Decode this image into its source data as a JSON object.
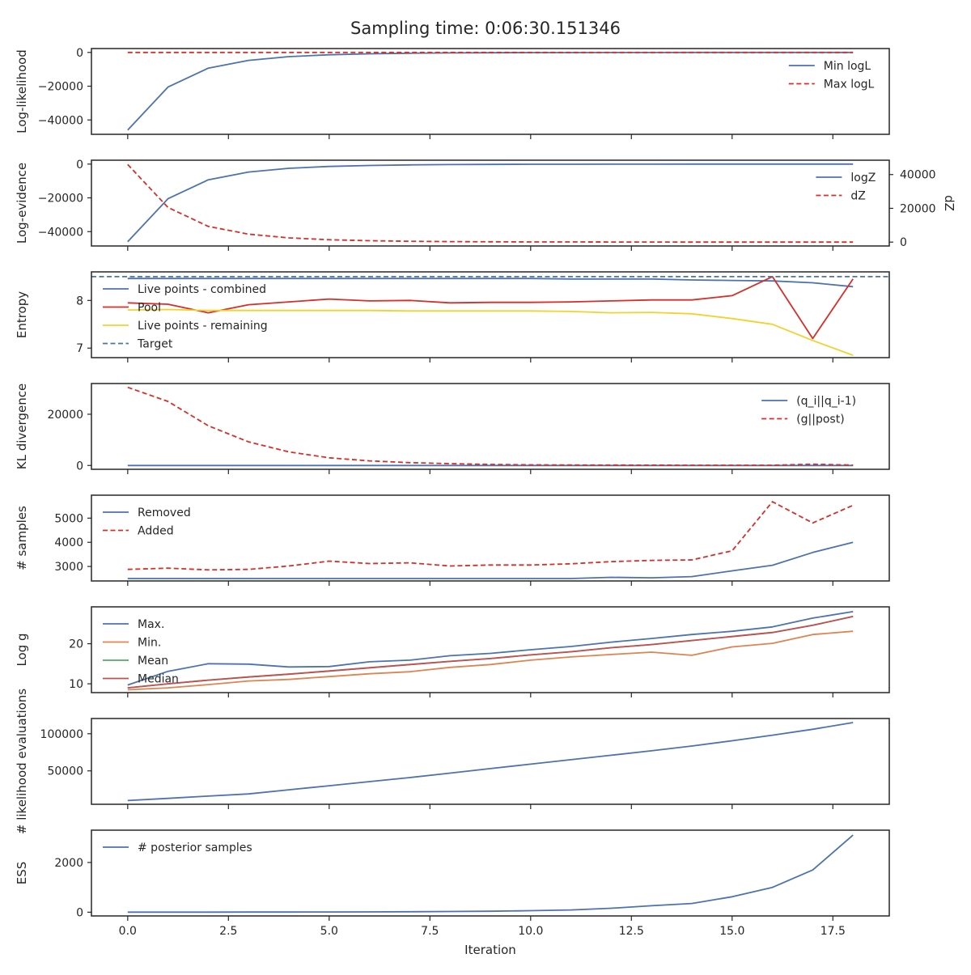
{
  "figure": {
    "title": "Sampling time: 0:06:30.151346"
  },
  "colors": {
    "blue": "#4c72b0",
    "red": "#d62e28",
    "orange": "#dd8452",
    "green": "#55a868",
    "brick": "#c44e52",
    "yellow": "#f2d22c",
    "text": "#262626"
  },
  "x_axis": {
    "label": "Iteration",
    "ticks": [
      0,
      2.5,
      5,
      7.5,
      10,
      12.5,
      15,
      17.5
    ],
    "tick_labels": [
      "0.0",
      "2.5",
      "5.0",
      "7.5",
      "10.0",
      "12.5",
      "15.0",
      "17.5"
    ],
    "range": [
      -0.9,
      18.9
    ]
  },
  "chart_data": [
    {
      "type": "line",
      "ylabel": "Log-likelihood",
      "ylim": [
        -48500,
        2300
      ],
      "yticks": [
        0,
        -20000,
        -40000
      ],
      "ytick_labels": [
        "0",
        "−20000",
        "−40000"
      ],
      "legend": "right",
      "x": [
        0,
        1,
        2,
        3,
        4,
        5,
        6,
        7,
        8,
        9,
        10,
        11,
        12,
        13,
        14,
        15,
        16,
        17,
        18
      ],
      "series": [
        {
          "name": "Min logL",
          "color": "blue",
          "dash": false,
          "values": [
            -46000,
            -20500,
            -9300,
            -4700,
            -2500,
            -1400,
            -800,
            -500,
            -300,
            -200,
            -120,
            -80,
            -50,
            -30,
            -20,
            -12,
            -8,
            -5,
            -3
          ]
        },
        {
          "name": "Max logL",
          "color": "red",
          "dash": true,
          "values": [
            0,
            0,
            0,
            0,
            0,
            0,
            0,
            0,
            0,
            0,
            0,
            0,
            0,
            0,
            0,
            0,
            0,
            0,
            0
          ]
        }
      ]
    },
    {
      "type": "line",
      "ylabel": "Log-evidence",
      "ylim": [
        -48500,
        2300
      ],
      "yticks": [
        0,
        -20000,
        -40000
      ],
      "ytick_labels": [
        "0",
        "−20000",
        "−40000"
      ],
      "y2label": "dZ",
      "y2lim": [
        -2300,
        48500
      ],
      "y2ticks": [
        0,
        20000,
        40000
      ],
      "y2tick_labels": [
        "0",
        "20000",
        "40000"
      ],
      "legend": "right",
      "x": [
        0,
        1,
        2,
        3,
        4,
        5,
        6,
        7,
        8,
        9,
        10,
        11,
        12,
        13,
        14,
        15,
        16,
        17,
        18
      ],
      "series": [
        {
          "name": "logZ",
          "color": "blue",
          "dash": false,
          "axis": "left",
          "values": [
            -46000,
            -20500,
            -9300,
            -4700,
            -2500,
            -1400,
            -800,
            -500,
            -300,
            -200,
            -120,
            -80,
            -50,
            -30,
            -20,
            -12,
            -8,
            -5,
            -3
          ]
        },
        {
          "name": "dZ",
          "color": "red",
          "dash": true,
          "axis": "right",
          "values": [
            46000,
            20500,
            9300,
            4700,
            2500,
            1400,
            800,
            500,
            300,
            200,
            120,
            80,
            50,
            30,
            20,
            12,
            8,
            5,
            3
          ]
        }
      ]
    },
    {
      "type": "line",
      "ylabel": "Entropy",
      "ylim": [
        6.8,
        8.6
      ],
      "yticks": [
        7,
        8
      ],
      "ytick_labels": [
        "7",
        "8"
      ],
      "legend": "top-left",
      "x": [
        0,
        1,
        2,
        3,
        4,
        5,
        6,
        7,
        8,
        9,
        10,
        11,
        12,
        13,
        14,
        15,
        16,
        17,
        18
      ],
      "series": [
        {
          "name": "Live points - combined",
          "color": "blue",
          "dash": false,
          "values": [
            8.46,
            8.46,
            8.46,
            8.46,
            8.46,
            8.46,
            8.46,
            8.46,
            8.46,
            8.46,
            8.46,
            8.45,
            8.45,
            8.45,
            8.43,
            8.42,
            8.41,
            8.37,
            8.29
          ]
        },
        {
          "name": "Pool",
          "color": "red",
          "dash": false,
          "values": [
            7.95,
            7.92,
            7.74,
            7.91,
            7.97,
            8.03,
            7.99,
            8.0,
            7.95,
            7.96,
            7.96,
            7.97,
            7.99,
            8.01,
            8.01,
            8.1,
            8.5,
            7.2,
            8.45
          ]
        },
        {
          "name": "Live points - remaining",
          "color": "yellow",
          "dash": false,
          "values": [
            7.8,
            7.81,
            7.79,
            7.79,
            7.79,
            7.79,
            7.79,
            7.78,
            7.78,
            7.78,
            7.78,
            7.77,
            7.74,
            7.75,
            7.72,
            7.62,
            7.5,
            7.16,
            6.85
          ]
        },
        {
          "name": "Target",
          "color": "blue",
          "dash": true,
          "values": [
            8.5,
            8.5,
            8.5,
            8.5,
            8.5,
            8.5,
            8.5,
            8.5,
            8.5,
            8.5,
            8.5,
            8.5,
            8.5,
            8.5,
            8.5,
            8.5,
            8.5,
            8.5,
            8.5
          ]
        }
      ]
    },
    {
      "type": "line",
      "ylabel": "KL divergence",
      "ylim": [
        -1500,
        32000
      ],
      "yticks": [
        0,
        20000
      ],
      "ytick_labels": [
        "0",
        "20000"
      ],
      "legend": "right",
      "x": [
        0,
        1,
        2,
        3,
        4,
        5,
        6,
        7,
        8,
        9,
        10,
        11,
        12,
        13,
        14,
        15,
        16,
        17,
        18
      ],
      "series": [
        {
          "name": "(q_i||q_i-1)",
          "color": "blue",
          "dash": false,
          "values": [
            0,
            0,
            0,
            0,
            0,
            0,
            0,
            0,
            0,
            0,
            0,
            0,
            0,
            0,
            0,
            0,
            0,
            0,
            0
          ]
        },
        {
          "name": "(g||post)",
          "color": "red",
          "dash": true,
          "values": [
            30500,
            25000,
            15500,
            9200,
            5300,
            3000,
            1800,
            1100,
            700,
            400,
            250,
            180,
            130,
            100,
            90,
            80,
            80,
            500,
            150
          ]
        }
      ]
    },
    {
      "type": "line",
      "ylabel": "# samples",
      "ylim": [
        2400,
        5950
      ],
      "yticks": [
        3000,
        4000,
        5000
      ],
      "ytick_labels": [
        "3000",
        "4000",
        "5000"
      ],
      "legend": "top-left",
      "x": [
        0,
        1,
        2,
        3,
        4,
        5,
        6,
        7,
        8,
        9,
        10,
        11,
        12,
        13,
        14,
        15,
        16,
        17,
        18
      ],
      "series": [
        {
          "name": "Removed",
          "color": "blue",
          "dash": false,
          "values": [
            2500,
            2500,
            2500,
            2500,
            2500,
            2500,
            2500,
            2500,
            2500,
            2500,
            2500,
            2500,
            2550,
            2530,
            2580,
            2820,
            3050,
            3580,
            4000
          ]
        },
        {
          "name": "Added",
          "color": "red",
          "dash": true,
          "values": [
            2880,
            2930,
            2860,
            2880,
            3020,
            3220,
            3120,
            3150,
            3020,
            3060,
            3060,
            3110,
            3200,
            3250,
            3270,
            3650,
            5680,
            4800,
            5530
          ]
        }
      ]
    },
    {
      "type": "line",
      "ylabel": "Log g",
      "ylim": [
        7.8,
        29.2
      ],
      "yticks": [
        10,
        20
      ],
      "ytick_labels": [
        "10",
        "20"
      ],
      "legend": "top-left",
      "x": [
        0,
        1,
        2,
        3,
        4,
        5,
        6,
        7,
        8,
        9,
        10,
        11,
        12,
        13,
        14,
        15,
        16,
        17,
        18
      ],
      "series": [
        {
          "name": "Max.",
          "color": "blue",
          "dash": false,
          "values": [
            9.7,
            13.1,
            15.0,
            14.9,
            14.2,
            14.3,
            15.5,
            15.9,
            17.0,
            17.6,
            18.5,
            19.3,
            20.4,
            21.3,
            22.3,
            23.1,
            24.2,
            26.4,
            28.0
          ]
        },
        {
          "name": "Min.",
          "color": "orange",
          "dash": false,
          "values": [
            8.5,
            9.0,
            9.8,
            10.7,
            11.1,
            11.8,
            12.5,
            13.0,
            14.1,
            14.8,
            15.9,
            16.7,
            17.3,
            17.9,
            17.1,
            19.2,
            20.1,
            22.3,
            23.1
          ]
        },
        {
          "name": "Mean",
          "color": "green",
          "dash": false,
          "values": [
            9.0,
            10.0,
            10.9,
            11.7,
            12.4,
            13.2,
            14.0,
            14.8,
            15.6,
            16.3,
            17.2,
            18.0,
            19.0,
            19.8,
            20.8,
            21.8,
            22.8,
            24.6,
            26.8
          ]
        },
        {
          "name": "Median",
          "color": "brick",
          "dash": false,
          "values": [
            9.0,
            10.0,
            10.9,
            11.7,
            12.4,
            13.2,
            14.0,
            14.8,
            15.6,
            16.3,
            17.2,
            18.0,
            19.0,
            19.8,
            20.8,
            21.8,
            22.8,
            24.6,
            26.8
          ]
        }
      ]
    },
    {
      "type": "line",
      "ylabel": "# likelihood evaluations",
      "ylim": [
        5000,
        120500
      ],
      "yticks": [
        50000,
        100000
      ],
      "ytick_labels": [
        "50000",
        "100000"
      ],
      "legend": "none",
      "x": [
        0,
        1,
        2,
        3,
        4,
        5,
        6,
        7,
        8,
        9,
        10,
        11,
        12,
        13,
        14,
        15,
        16,
        17,
        18
      ],
      "series": [
        {
          "name": "",
          "color": "blue",
          "dash": false,
          "values": [
            10000,
            13000,
            16000,
            19000,
            24500,
            30000,
            35500,
            41000,
            47000,
            53000,
            59000,
            65000,
            71000,
            77000,
            83500,
            90500,
            98000,
            106000,
            115000
          ]
        }
      ]
    },
    {
      "type": "line",
      "ylabel": "ESS",
      "ylim": [
        -150,
        3300
      ],
      "yticks": [
        0,
        2000
      ],
      "ytick_labels": [
        "0",
        "2000"
      ],
      "legend": "top-left",
      "x": [
        0,
        1,
        2,
        3,
        4,
        5,
        6,
        7,
        8,
        9,
        10,
        11,
        12,
        13,
        14,
        15,
        16,
        17,
        18
      ],
      "series": [
        {
          "name": "# posterior samples",
          "color": "blue",
          "dash": false,
          "values": [
            2,
            3,
            4,
            5,
            6,
            8,
            12,
            18,
            28,
            40,
            60,
            90,
            160,
            260,
            350,
            620,
            1000,
            1700,
            3100
          ]
        }
      ]
    }
  ]
}
